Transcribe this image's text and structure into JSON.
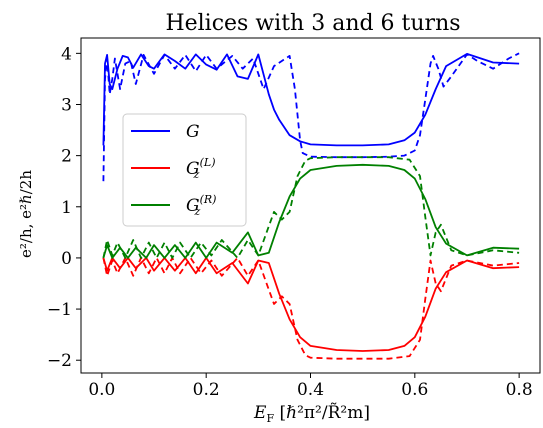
{
  "chart_data": {
    "type": "line",
    "title": "Helices with 3 and 6 turns",
    "xlabel_main": "E",
    "xlabel_sub": "F",
    "xlabel_units": "[ℏ²π²/R̃²m]",
    "ylabel_text": "e²/h, e²ℏ/2h",
    "xlim": [
      -0.04,
      0.84
    ],
    "ylim": [
      -2.25,
      4.3
    ],
    "xticks": [
      0.0,
      0.2,
      0.4,
      0.6,
      0.8
    ],
    "xtick_labels": [
      "0.0",
      "0.2",
      "0.4",
      "0.6",
      "0.8"
    ],
    "yticks": [
      -2,
      -1,
      0,
      1,
      2,
      3,
      4
    ],
    "ytick_labels": [
      "−2",
      "−1",
      "0",
      "1",
      "2",
      "3",
      "4"
    ],
    "grid": false,
    "legend_position": "center-left",
    "legend": [
      {
        "label": "G",
        "color": "#0000ff"
      },
      {
        "label": "G_z^(L)",
        "color": "#ff0000"
      },
      {
        "label": "G_z^(R)",
        "color": "#008000"
      }
    ],
    "line_styles": {
      "solid": "3 turns",
      "dashed": "6 turns"
    },
    "series": [
      {
        "color": "#0000ff",
        "style": "solid",
        "key": "G_3",
        "x": [
          0.003,
          0.006,
          0.01,
          0.015,
          0.02,
          0.03,
          0.04,
          0.05,
          0.06,
          0.075,
          0.09,
          0.1,
          0.12,
          0.14,
          0.16,
          0.18,
          0.2,
          0.22,
          0.24,
          0.26,
          0.28,
          0.3,
          0.32,
          0.33,
          0.34,
          0.36,
          0.38,
          0.4,
          0.45,
          0.5,
          0.55,
          0.58,
          0.6,
          0.62,
          0.64,
          0.66,
          0.7,
          0.75,
          0.8
        ],
        "y": [
          2.2,
          3.8,
          3.97,
          3.4,
          3.3,
          3.7,
          3.95,
          3.92,
          3.72,
          3.98,
          3.75,
          3.7,
          3.98,
          3.85,
          3.7,
          3.98,
          3.78,
          3.68,
          3.98,
          3.55,
          3.5,
          3.98,
          3.2,
          2.9,
          2.7,
          2.4,
          2.28,
          2.22,
          2.2,
          2.2,
          2.22,
          2.3,
          2.45,
          2.8,
          3.3,
          3.75,
          3.99,
          3.82,
          3.8
        ]
      },
      {
        "color": "#0000ff",
        "style": "dashed",
        "key": "G_6",
        "x": [
          0.003,
          0.006,
          0.01,
          0.015,
          0.02,
          0.025,
          0.035,
          0.045,
          0.055,
          0.065,
          0.08,
          0.1,
          0.12,
          0.14,
          0.16,
          0.18,
          0.2,
          0.22,
          0.25,
          0.27,
          0.29,
          0.31,
          0.33,
          0.36,
          0.37,
          0.38,
          0.385,
          0.4,
          0.45,
          0.5,
          0.55,
          0.58,
          0.6,
          0.61,
          0.62,
          0.63,
          0.635,
          0.645,
          0.655,
          0.67,
          0.7,
          0.72,
          0.75,
          0.78,
          0.8
        ],
        "y": [
          1.5,
          3.5,
          3.9,
          3.2,
          3.5,
          3.9,
          3.3,
          3.8,
          3.85,
          3.4,
          3.97,
          3.6,
          3.97,
          3.7,
          3.97,
          3.65,
          3.97,
          3.7,
          3.95,
          3.7,
          3.9,
          3.3,
          3.75,
          3.95,
          3.3,
          2.3,
          2.05,
          1.98,
          1.97,
          1.97,
          1.98,
          2.0,
          2.1,
          2.4,
          3.1,
          3.8,
          3.95,
          3.7,
          3.35,
          3.55,
          3.98,
          3.85,
          3.7,
          3.9,
          4.0
        ]
      },
      {
        "color": "#ff0000",
        "style": "solid",
        "key": "GL_3",
        "x": [
          0.003,
          0.01,
          0.02,
          0.035,
          0.05,
          0.065,
          0.085,
          0.1,
          0.12,
          0.14,
          0.16,
          0.18,
          0.2,
          0.22,
          0.25,
          0.28,
          0.3,
          0.32,
          0.34,
          0.36,
          0.38,
          0.4,
          0.45,
          0.5,
          0.55,
          0.58,
          0.6,
          0.62,
          0.64,
          0.66,
          0.7,
          0.75,
          0.8
        ],
        "y": [
          0.0,
          -0.25,
          0.0,
          -0.2,
          0.0,
          -0.2,
          0.0,
          -0.25,
          0.0,
          -0.25,
          0.0,
          -0.3,
          0.0,
          -0.3,
          -0.1,
          -0.5,
          -0.05,
          -0.1,
          -0.7,
          -1.2,
          -1.55,
          -1.72,
          -1.8,
          -1.82,
          -1.8,
          -1.72,
          -1.55,
          -1.15,
          -0.6,
          -0.28,
          -0.05,
          -0.2,
          -0.18
        ]
      },
      {
        "color": "#ff0000",
        "style": "dashed",
        "key": "GL_6",
        "x": [
          0.003,
          0.01,
          0.02,
          0.03,
          0.045,
          0.06,
          0.075,
          0.09,
          0.105,
          0.12,
          0.135,
          0.15,
          0.17,
          0.19,
          0.21,
          0.23,
          0.26,
          0.28,
          0.3,
          0.33,
          0.345,
          0.36,
          0.375,
          0.39,
          0.4,
          0.45,
          0.5,
          0.55,
          0.59,
          0.61,
          0.62,
          0.63,
          0.64,
          0.65,
          0.67,
          0.7,
          0.75,
          0.8
        ],
        "y": [
          0.0,
          -0.35,
          -0.05,
          -0.3,
          0.0,
          -0.35,
          0.0,
          -0.3,
          0.0,
          -0.3,
          0.0,
          -0.3,
          0.0,
          -0.3,
          -0.05,
          -0.35,
          0.0,
          -0.35,
          -0.05,
          -0.9,
          -0.75,
          -0.9,
          -1.6,
          -1.9,
          -1.95,
          -1.97,
          -1.97,
          -1.97,
          -1.92,
          -1.6,
          -0.8,
          -0.05,
          -0.5,
          -0.65,
          -0.15,
          -0.05,
          -0.15,
          -0.1
        ]
      },
      {
        "color": "#008000",
        "style": "solid",
        "key": "GR_3",
        "x": [
          0.003,
          0.01,
          0.02,
          0.035,
          0.05,
          0.065,
          0.085,
          0.1,
          0.12,
          0.14,
          0.16,
          0.18,
          0.2,
          0.22,
          0.25,
          0.28,
          0.3,
          0.32,
          0.34,
          0.36,
          0.38,
          0.4,
          0.45,
          0.5,
          0.55,
          0.58,
          0.6,
          0.62,
          0.64,
          0.66,
          0.7,
          0.75,
          0.8
        ],
        "y": [
          0.0,
          0.25,
          0.0,
          0.2,
          0.0,
          0.2,
          0.0,
          0.25,
          0.0,
          0.25,
          0.0,
          0.3,
          0.0,
          0.3,
          0.1,
          0.5,
          0.05,
          0.1,
          0.7,
          1.2,
          1.55,
          1.72,
          1.8,
          1.82,
          1.8,
          1.72,
          1.55,
          1.15,
          0.6,
          0.28,
          0.05,
          0.2,
          0.18
        ]
      },
      {
        "color": "#008000",
        "style": "dashed",
        "key": "GR_6",
        "x": [
          0.003,
          0.01,
          0.02,
          0.03,
          0.045,
          0.06,
          0.075,
          0.09,
          0.105,
          0.12,
          0.135,
          0.15,
          0.17,
          0.19,
          0.21,
          0.23,
          0.26,
          0.28,
          0.3,
          0.33,
          0.345,
          0.36,
          0.375,
          0.39,
          0.4,
          0.45,
          0.5,
          0.55,
          0.59,
          0.61,
          0.62,
          0.63,
          0.64,
          0.65,
          0.67,
          0.7,
          0.75,
          0.8
        ],
        "y": [
          0.0,
          0.35,
          0.05,
          0.3,
          0.0,
          0.35,
          0.0,
          0.3,
          0.0,
          0.3,
          0.0,
          0.3,
          0.0,
          0.3,
          0.05,
          0.35,
          0.0,
          0.35,
          0.05,
          0.9,
          0.75,
          0.9,
          1.6,
          1.9,
          1.95,
          1.97,
          1.97,
          1.97,
          1.92,
          1.6,
          0.8,
          0.05,
          0.5,
          0.65,
          0.15,
          0.05,
          0.15,
          0.1
        ]
      }
    ]
  }
}
